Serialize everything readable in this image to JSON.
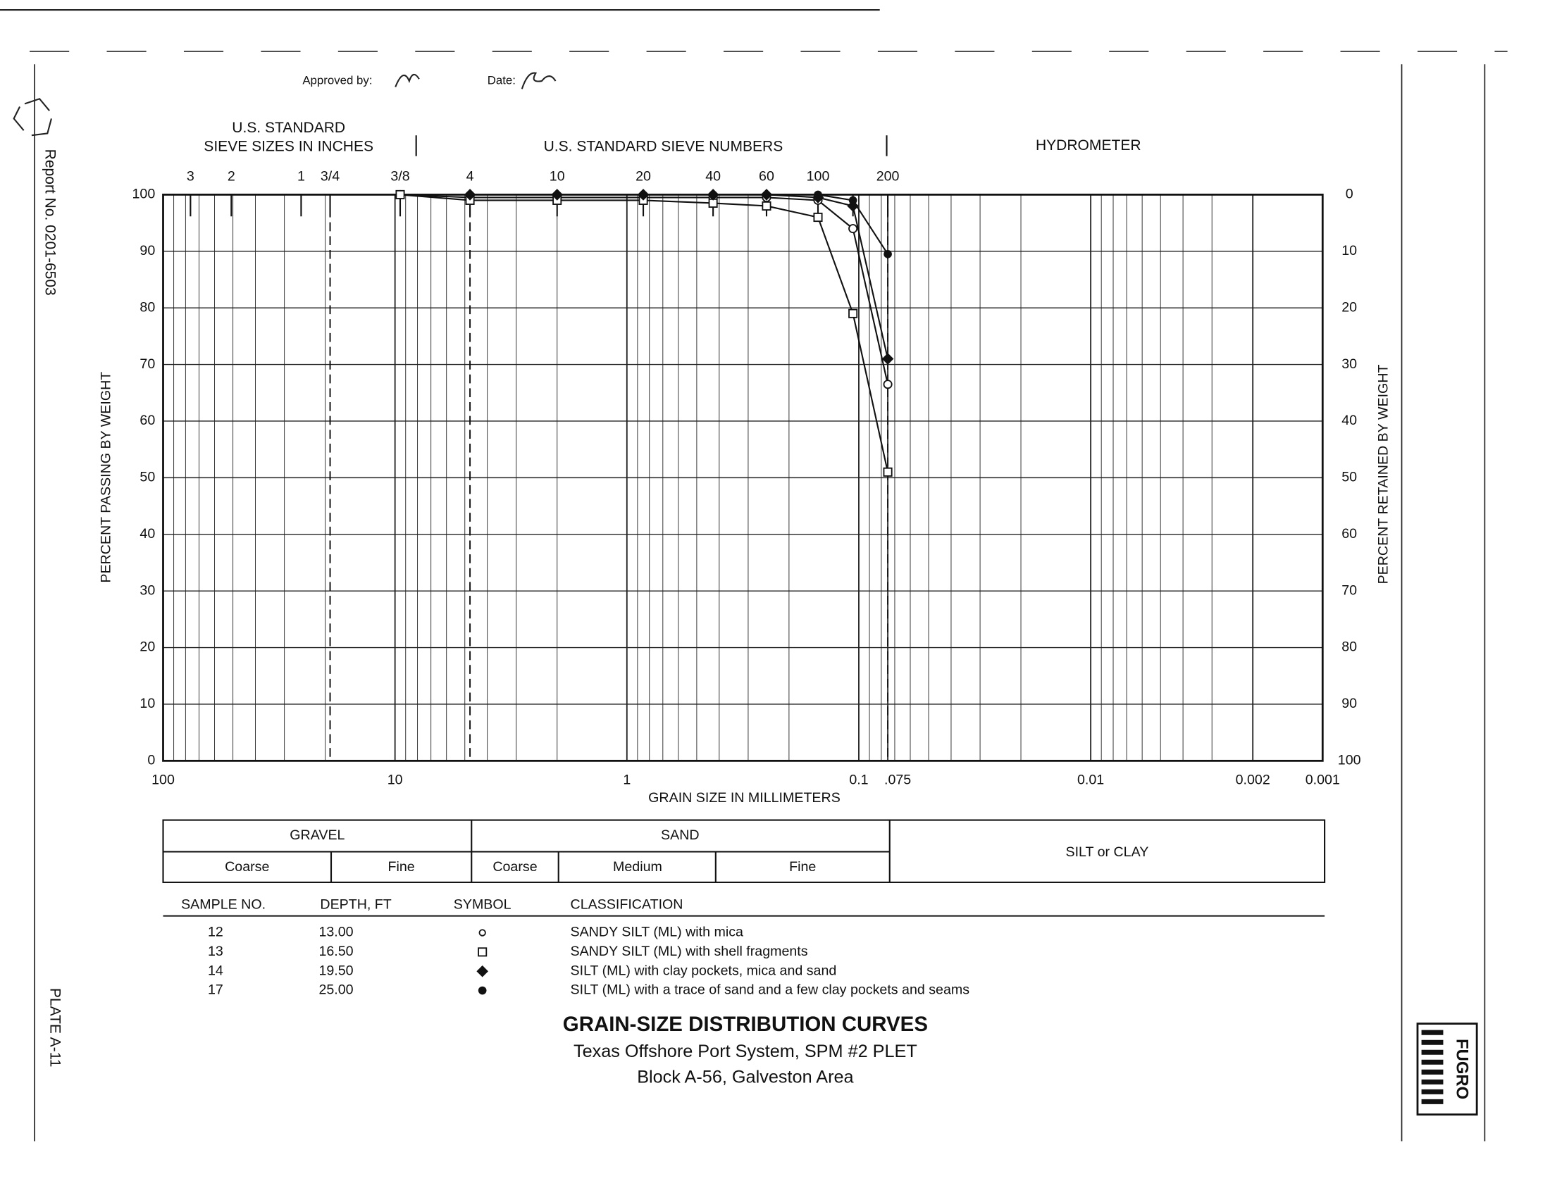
{
  "report_no": "Report No. 0201-6503",
  "plate": "PLATE A-11",
  "approved_label": "Approved by:",
  "date_label": "Date:",
  "logo": "FUGRO",
  "chart_data": {
    "type": "line",
    "title": "GRAIN-SIZE DISTRIBUTION CURVES",
    "subtitle": [
      "Texas Offshore Port System, SPM #2 PLET",
      "Block A-56, Galveston Area"
    ],
    "sieve_heading": [
      "U.S. STANDARD",
      "SIEVE SIZES IN INCHES"
    ],
    "sieve_numbers_heading": "U.S. STANDARD SIEVE NUMBERS",
    "hydrometer_heading": "HYDROMETER",
    "x_label": "GRAIN SIZE IN MILLIMETERS",
    "y_label": "PERCENT PASSING BY WEIGHT",
    "y2_label": "PERCENT RETAINED BY WEIGHT",
    "x_log": true,
    "grid": true,
    "xlim": [
      100,
      0.001
    ],
    "xticks": [
      100,
      10,
      1,
      0.1,
      {
        "value": 0.075,
        "label": ".075"
      },
      0.01,
      0.002,
      0.001
    ],
    "ylim": [
      0,
      100
    ],
    "yticks": [
      0,
      10,
      20,
      30,
      40,
      50,
      60,
      70,
      80,
      90,
      100
    ],
    "y2lim": [
      100,
      0
    ],
    "y2ticks": [
      0,
      10,
      20,
      30,
      40,
      50,
      60,
      70,
      80,
      90,
      100
    ],
    "sieve_ticks": [
      {
        "value": 76.2,
        "label": "3"
      },
      {
        "value": 50.8,
        "label": "2"
      },
      {
        "value": 25.4,
        "label": "1"
      },
      {
        "value": 19.05,
        "label": "3/4",
        "divider": true
      },
      {
        "value": 9.5,
        "label": "3/8"
      },
      {
        "value": 4.75,
        "label": "4",
        "divider": true
      },
      {
        "value": 2.0,
        "label": "10"
      },
      {
        "value": 0.85,
        "label": "20"
      },
      {
        "value": 0.425,
        "label": "40"
      },
      {
        "value": 0.25,
        "label": "60"
      },
      {
        "value": 0.15,
        "label": "100"
      },
      {
        "value": 0.106,
        "label": null
      },
      {
        "value": 0.075,
        "label": "200",
        "divider": true
      }
    ],
    "x": [
      9.5,
      4.75,
      2.0,
      0.85,
      0.425,
      0.25,
      0.15,
      0.106,
      0.075
    ],
    "series": [
      {
        "name": "12",
        "depth": "13.00",
        "classification": "SANDY SILT (ML) with mica",
        "marker": "circle",
        "color": "#111",
        "values": [
          100,
          99.5,
          99.5,
          99.5,
          99.5,
          99.5,
          99,
          94,
          66.5
        ]
      },
      {
        "name": "13",
        "depth": "16.50",
        "classification": "SANDY SILT (ML) with shell fragments",
        "marker": "square",
        "color": "#111",
        "values": [
          100,
          99,
          99,
          99,
          98.5,
          98,
          96,
          79,
          51
        ]
      },
      {
        "name": "14",
        "depth": "19.50",
        "classification": "SILT (ML) with clay pockets, mica and sand",
        "marker": "diamond",
        "color": "#111",
        "values": [
          null,
          100,
          100,
          100,
          100,
          100,
          99.5,
          98,
          71
        ]
      },
      {
        "name": "17",
        "depth": "25.00",
        "classification": "SILT (ML) with a trace of sand and a few clay pockets and seams",
        "marker": "dot",
        "color": "#111",
        "values": [
          null,
          null,
          null,
          100,
          100,
          100,
          100,
          99,
          89.5
        ]
      }
    ],
    "legend_headers": [
      "SAMPLE NO.",
      "DEPTH, FT",
      "SYMBOL",
      "CLASSIFICATION"
    ],
    "soil_table": {
      "gravel": "GRAVEL",
      "gravel_coarse": "Coarse",
      "gravel_fine": "Fine",
      "sand": "SAND",
      "sand_coarse": "Coarse",
      "sand_medium": "Medium",
      "sand_fine": "Fine",
      "silt_clay": "SILT or CLAY"
    }
  }
}
